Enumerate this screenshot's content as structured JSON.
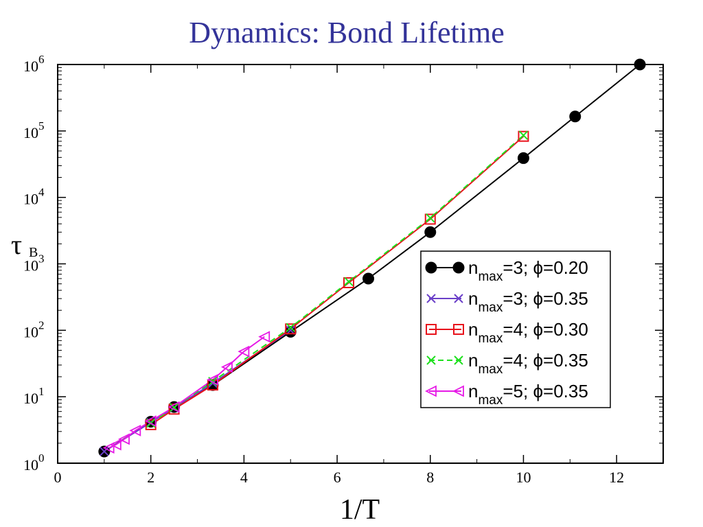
{
  "slide": {
    "title": "Dynamics:  Bond Lifetime"
  },
  "chart_data": {
    "type": "line",
    "xlabel": "1/T",
    "ylabel_main": "τ",
    "ylabel_sub": "B",
    "xlim": [
      0,
      13
    ],
    "ylim": [
      1,
      1000000
    ],
    "yscale": "log",
    "grid": false,
    "legend_position": "right",
    "x_ticks": [
      "0",
      "2",
      "4",
      "6",
      "8",
      "10",
      "12"
    ],
    "y_ticks": [
      {
        "base": "10",
        "exp": "0"
      },
      {
        "base": "10",
        "exp": "1"
      },
      {
        "base": "10",
        "exp": "2"
      },
      {
        "base": "10",
        "exp": "3"
      },
      {
        "base": "10",
        "exp": "4"
      },
      {
        "base": "10",
        "exp": "5"
      },
      {
        "base": "10",
        "exp": "6"
      }
    ],
    "series": [
      {
        "legend_pre": "n",
        "legend_sub": "max",
        "legend_post": "=3; ϕ=0.20",
        "marker": "filled-circle",
        "color": "#000000",
        "dash": "",
        "x": [
          1,
          2,
          2.5,
          3.33,
          5,
          6.67,
          8,
          10,
          11.11,
          12.5
        ],
        "y": [
          1.5,
          4.2,
          7,
          15,
          95,
          600,
          3000,
          39000,
          165000,
          1000000
        ]
      },
      {
        "legend_pre": "n",
        "legend_sub": "max",
        "legend_post": "=3; ϕ=0.35",
        "marker": "x",
        "color": "#6a3fc8",
        "dash": "",
        "x": [
          1,
          2,
          2.5,
          3.33,
          5
        ],
        "y": [
          1.5,
          4.1,
          6.8,
          16,
          100
        ]
      },
      {
        "legend_pre": "n",
        "legend_sub": "max",
        "legend_post": "=4; ϕ=0.30",
        "marker": "open-square",
        "color": "#e8121b",
        "dash": "",
        "x": [
          2,
          2.5,
          3.33,
          5,
          6.25,
          8,
          10
        ],
        "y": [
          3.8,
          6.5,
          15,
          105,
          520,
          4700,
          83000
        ]
      },
      {
        "legend_pre": "n",
        "legend_sub": "max",
        "legend_post": "=4; ϕ=0.35",
        "marker": "x",
        "color": "#1ee01e",
        "dash": "9,6",
        "x": [
          2,
          2.5,
          3.33,
          5,
          6.25,
          8,
          10
        ],
        "y": [
          4,
          6.9,
          17,
          110,
          540,
          4900,
          86000
        ]
      },
      {
        "legend_pre": "n",
        "legend_sub": "max",
        "legend_post": "=5; ϕ=0.35",
        "marker": "open-triangle-left",
        "color": "#e619e6",
        "dash": "",
        "x": [
          1.1,
          1.25,
          1.43,
          1.67,
          2,
          2.5,
          3.33,
          3.64,
          4,
          4.44
        ],
        "y": [
          1.7,
          1.9,
          2.3,
          3.1,
          4.3,
          7,
          18,
          28,
          48,
          80
        ]
      }
    ]
  }
}
